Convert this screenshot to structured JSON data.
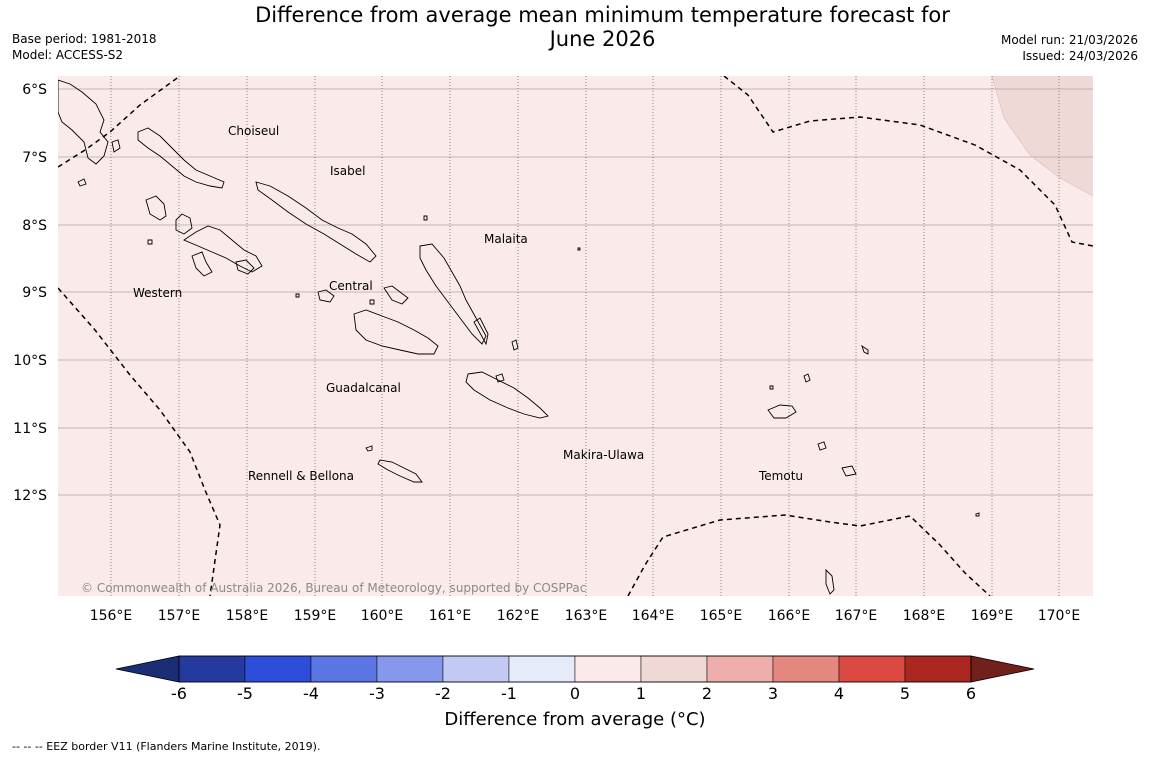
{
  "title": {
    "line1": "Difference from average mean minimum temperature forecast for",
    "line2": "June 2026"
  },
  "meta_left": {
    "base_period": "Base period: 1981-2018",
    "model": "Model: ACCESS-S2"
  },
  "meta_right": {
    "model_run": "Model run: 21/03/2026",
    "issued": "Issued: 24/03/2026"
  },
  "map": {
    "background_color": "#fbeaea",
    "lat_labels": [
      "6°S",
      "7°S",
      "8°S",
      "9°S",
      "10°S",
      "11°S",
      "12°S"
    ],
    "lon_labels": [
      "156°E",
      "157°E",
      "158°E",
      "159°E",
      "160°E",
      "161°E",
      "162°E",
      "163°E",
      "164°E",
      "165°E",
      "166°E",
      "167°E",
      "168°E",
      "169°E",
      "170°E"
    ],
    "regions": [
      "Choiseul",
      "Isabel",
      "Malaita",
      "Western",
      "Central",
      "Guadalcanal",
      "Rennell & Bellona",
      "Makira-Ulawa",
      "Temotu"
    ],
    "copyright": "© Commonwealth of Australia 2026, Bureau of Meteorology, supported by COSPPac"
  },
  "colorbar": {
    "colors": [
      "#253a9e",
      "#2d4ed9",
      "#5a76e2",
      "#8598ec",
      "#c2c9f3",
      "#e6ebfa",
      "#fce9ea",
      "#f0d8d5",
      "#eeaeab",
      "#e4877e",
      "#da4a40",
      "#ab2822"
    ],
    "low_extend_color": "#1a2d75",
    "high_extend_color": "#72201c",
    "ticks": [
      "-6",
      "-5",
      "-4",
      "-3",
      "-2",
      "-1",
      "0",
      "1",
      "2",
      "3",
      "4",
      "5",
      "6"
    ],
    "label": "Difference from average (°C)"
  },
  "footer": "--  --  -- EEZ border V11 (Flanders Marine Institute, 2019)."
}
